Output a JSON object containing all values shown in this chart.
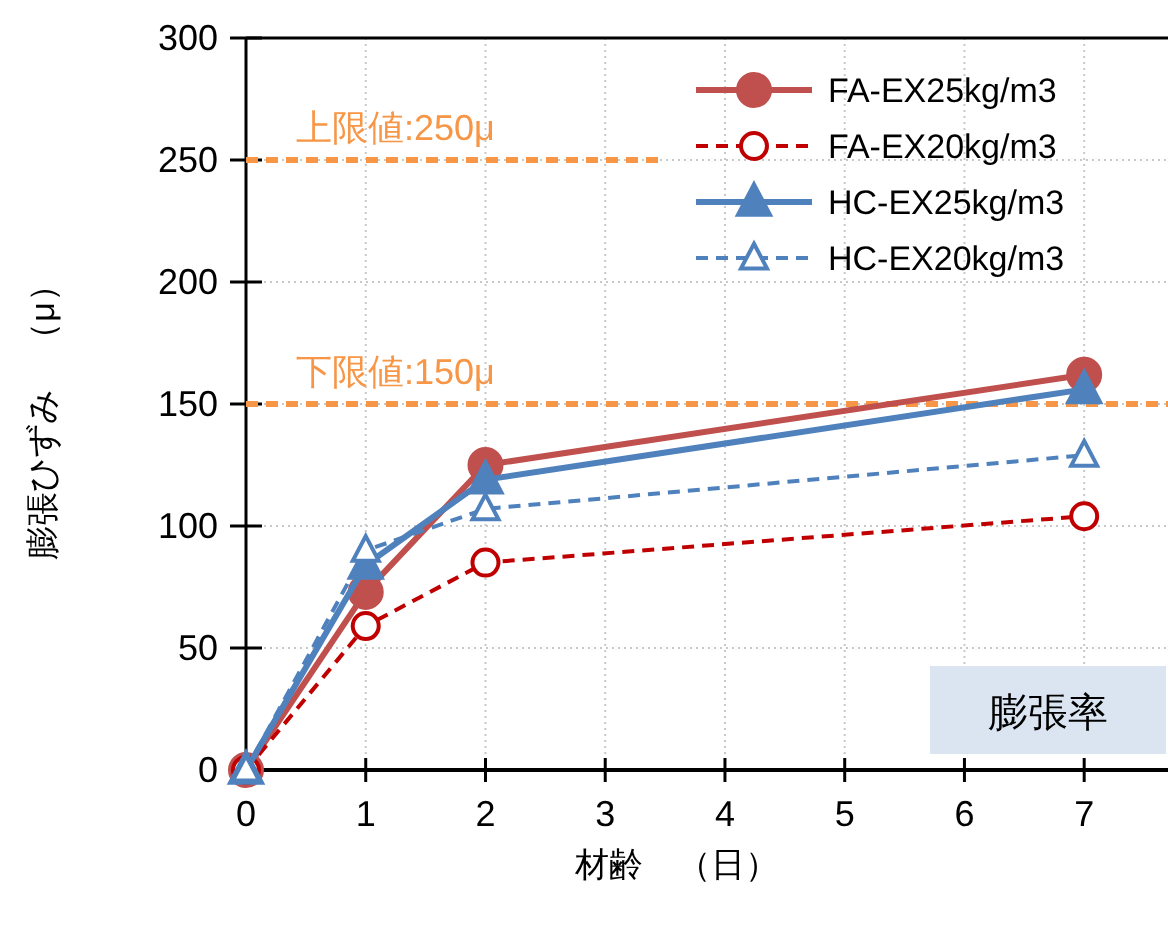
{
  "chart_data": {
    "type": "line",
    "xlabel": "材齢　（日）",
    "ylabel": "膨張ひずみ　（μ）",
    "x": [
      0,
      1,
      2,
      7
    ],
    "series": [
      {
        "name": "FA-EX25kg/m3",
        "color": "#c0504d",
        "values": [
          0,
          73,
          125,
          162
        ],
        "marker": "circle",
        "line_style": "solid"
      },
      {
        "name": "FA-EX20kg/m3",
        "color": "#c00000",
        "values": [
          0,
          59,
          85,
          104
        ],
        "marker": "circle",
        "line_style": "dashed"
      },
      {
        "name": "HC-EX25kg/m3",
        "color": "#4f81bd",
        "values": [
          0,
          84,
          119,
          156
        ],
        "marker": "triangle",
        "line_style": "solid"
      },
      {
        "name": "HC-EX20kg/m3",
        "color": "#4f81bd",
        "values": [
          0,
          90,
          107,
          129
        ],
        "marker": "triangle",
        "line_style": "dashed"
      }
    ],
    "xlim": [
      0,
      7.7
    ],
    "xticks": [
      0,
      1,
      2,
      3,
      4,
      5,
      6,
      7
    ],
    "ylim": [
      0,
      300
    ],
    "yticks": [
      0,
      50,
      100,
      150,
      200,
      250,
      300
    ],
    "ref_lines": [
      {
        "axis": "y",
        "value": 250,
        "label": "上限値:250μ",
        "color": "#f79646",
        "line_style": "dashed"
      },
      {
        "axis": "y",
        "value": 150,
        "label": "下限値:150μ",
        "color": "#f79646",
        "line_style": "dashed"
      }
    ],
    "annotations": [
      "膨張率"
    ],
    "grid": true,
    "legend": "top right"
  }
}
